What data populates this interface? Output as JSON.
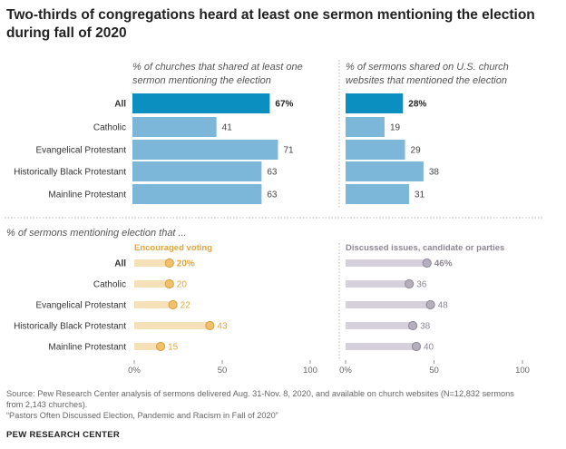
{
  "title": "Two-thirds of congregations heard at least one sermon mentioning the election during fall of 2020",
  "chart_data": [
    {
      "type": "bar",
      "orientation": "horizontal",
      "title_lines": [
        "% of churches that shared at least one",
        "sermon mentioning the election"
      ],
      "categories": [
        "All",
        "Catholic",
        "Evangelical Protestant",
        "Historically Black Protestant",
        "Mainline Protestant"
      ],
      "values": [
        67,
        41,
        71,
        63,
        63
      ],
      "value_labels": [
        "67%",
        "41",
        "71",
        "63",
        "63"
      ],
      "highlight_index": 0,
      "colors": {
        "highlight": "#0b8ec0",
        "bar": "#7cb6d9"
      },
      "xlim": [
        0,
        100
      ]
    },
    {
      "type": "bar",
      "orientation": "horizontal",
      "title_lines": [
        "% of sermons shared on U.S. church",
        "websites that mentioned the election"
      ],
      "categories": [
        "All",
        "Catholic",
        "Evangelical Protestant",
        "Historically Black Protestant",
        "Mainline Protestant"
      ],
      "values": [
        28,
        19,
        29,
        38,
        31
      ],
      "value_labels": [
        "28%",
        "19",
        "29",
        "38",
        "31"
      ],
      "highlight_index": 0,
      "colors": {
        "highlight": "#0b8ec0",
        "bar": "#7cb6d9"
      },
      "xlim": [
        0,
        100
      ]
    },
    {
      "type": "dot",
      "section_title": "% of sermons mentioning election that ...",
      "title": "Encouraged voting",
      "categories": [
        "All",
        "Catholic",
        "Evangelical Protestant",
        "Historically Black Protestant",
        "Mainline Protestant"
      ],
      "values": [
        20,
        20,
        22,
        43,
        15
      ],
      "value_labels": [
        "20%",
        "20",
        "22",
        "43",
        "15"
      ],
      "colors": {
        "track": "#f6e0b8",
        "dot": "#f0c06a",
        "dot_stroke": "#d8a040",
        "label": "#e3a63b"
      },
      "xlim": [
        0,
        100
      ],
      "xticks": [
        "0%",
        "50",
        "100"
      ]
    },
    {
      "type": "dot",
      "title": "Discussed issues, candidate or parties",
      "categories": [
        "All",
        "Catholic",
        "Evangelical Protestant",
        "Historically Black Protestant",
        "Mainline Protestant"
      ],
      "values": [
        46,
        36,
        48,
        38,
        40
      ],
      "value_labels": [
        "46%",
        "36",
        "48",
        "38",
        "40"
      ],
      "colors": {
        "track": "#d5d0db",
        "dot": "#b4aebd",
        "dot_stroke": "#8f8898",
        "label": "#8e8796"
      },
      "xlim": [
        0,
        100
      ],
      "xticks": [
        "0%",
        "50",
        "100"
      ]
    }
  ],
  "source_lines": [
    "Source: Pew Research Center analysis of sermons delivered Aug. 31-Nov. 8, 2020, and available on church websites (N=12,832 sermons",
    "from 2,143 churches).",
    "“Pastors Often Discussed Election, Pandemic and Racism in Fall of 2020”"
  ],
  "brand": "PEW RESEARCH CENTER"
}
